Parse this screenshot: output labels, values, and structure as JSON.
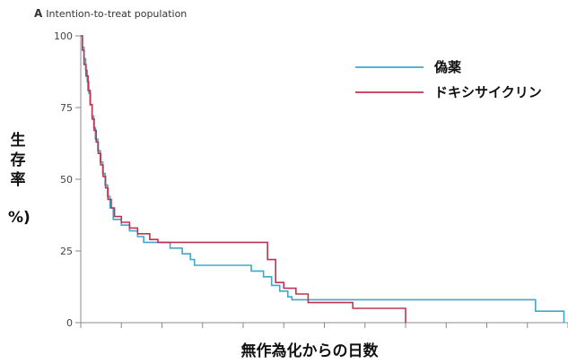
{
  "chart_data": {
    "type": "line",
    "panel_letter": "A",
    "title": "Intention-to-treat population",
    "xlabel": "無作為化からの日数",
    "ylabel": [
      "生",
      "存",
      "率",
      "%)"
    ],
    "ylim": [
      0,
      100
    ],
    "xlim": [
      0,
      120
    ],
    "yticks": [
      0,
      25,
      50,
      75,
      100
    ],
    "xticks": [
      0,
      10,
      20,
      30,
      40,
      50,
      60,
      70,
      80,
      90,
      100,
      110,
      120
    ],
    "grid": false,
    "legend_position": "top-right",
    "series": [
      {
        "name": "偽薬",
        "color": "#3fa8c8",
        "steps": [
          [
            0,
            100
          ],
          [
            0.4,
            96
          ],
          [
            0.8,
            92
          ],
          [
            1.2,
            88
          ],
          [
            1.6,
            84
          ],
          [
            2,
            80
          ],
          [
            2.4,
            76
          ],
          [
            2.8,
            72
          ],
          [
            3.2,
            68
          ],
          [
            3.6,
            64
          ],
          [
            4.2,
            60
          ],
          [
            4.8,
            56
          ],
          [
            5.4,
            52
          ],
          [
            6,
            48
          ],
          [
            6.6,
            44
          ],
          [
            7.2,
            40
          ],
          [
            8,
            36
          ],
          [
            10,
            34
          ],
          [
            12,
            32
          ],
          [
            14,
            30
          ],
          [
            15.5,
            28
          ],
          [
            22,
            26
          ],
          [
            25,
            24
          ],
          [
            27,
            22
          ],
          [
            28,
            20
          ],
          [
            42,
            18
          ],
          [
            45,
            16
          ],
          [
            47,
            13
          ],
          [
            49,
            11
          ],
          [
            51,
            9
          ],
          [
            52,
            8
          ],
          [
            112,
            4
          ],
          [
            119,
            0
          ]
        ]
      },
      {
        "name": "ドキシサイクリン",
        "color": "#c0334f",
        "steps": [
          [
            0,
            100
          ],
          [
            0.4,
            95
          ],
          [
            0.8,
            90
          ],
          [
            1.3,
            86
          ],
          [
            1.8,
            81
          ],
          [
            2.3,
            76
          ],
          [
            2.8,
            71
          ],
          [
            3.3,
            67
          ],
          [
            3.8,
            63
          ],
          [
            4.3,
            59
          ],
          [
            4.9,
            55
          ],
          [
            5.5,
            51
          ],
          [
            6.1,
            47
          ],
          [
            6.7,
            43
          ],
          [
            7.5,
            40
          ],
          [
            8.3,
            37
          ],
          [
            10,
            35
          ],
          [
            12,
            33
          ],
          [
            14,
            31
          ],
          [
            17,
            29
          ],
          [
            19,
            28
          ],
          [
            46,
            22
          ],
          [
            48,
            14
          ],
          [
            50,
            12
          ],
          [
            53,
            10
          ],
          [
            56,
            7
          ],
          [
            67,
            5
          ],
          [
            80,
            0
          ]
        ]
      }
    ]
  }
}
